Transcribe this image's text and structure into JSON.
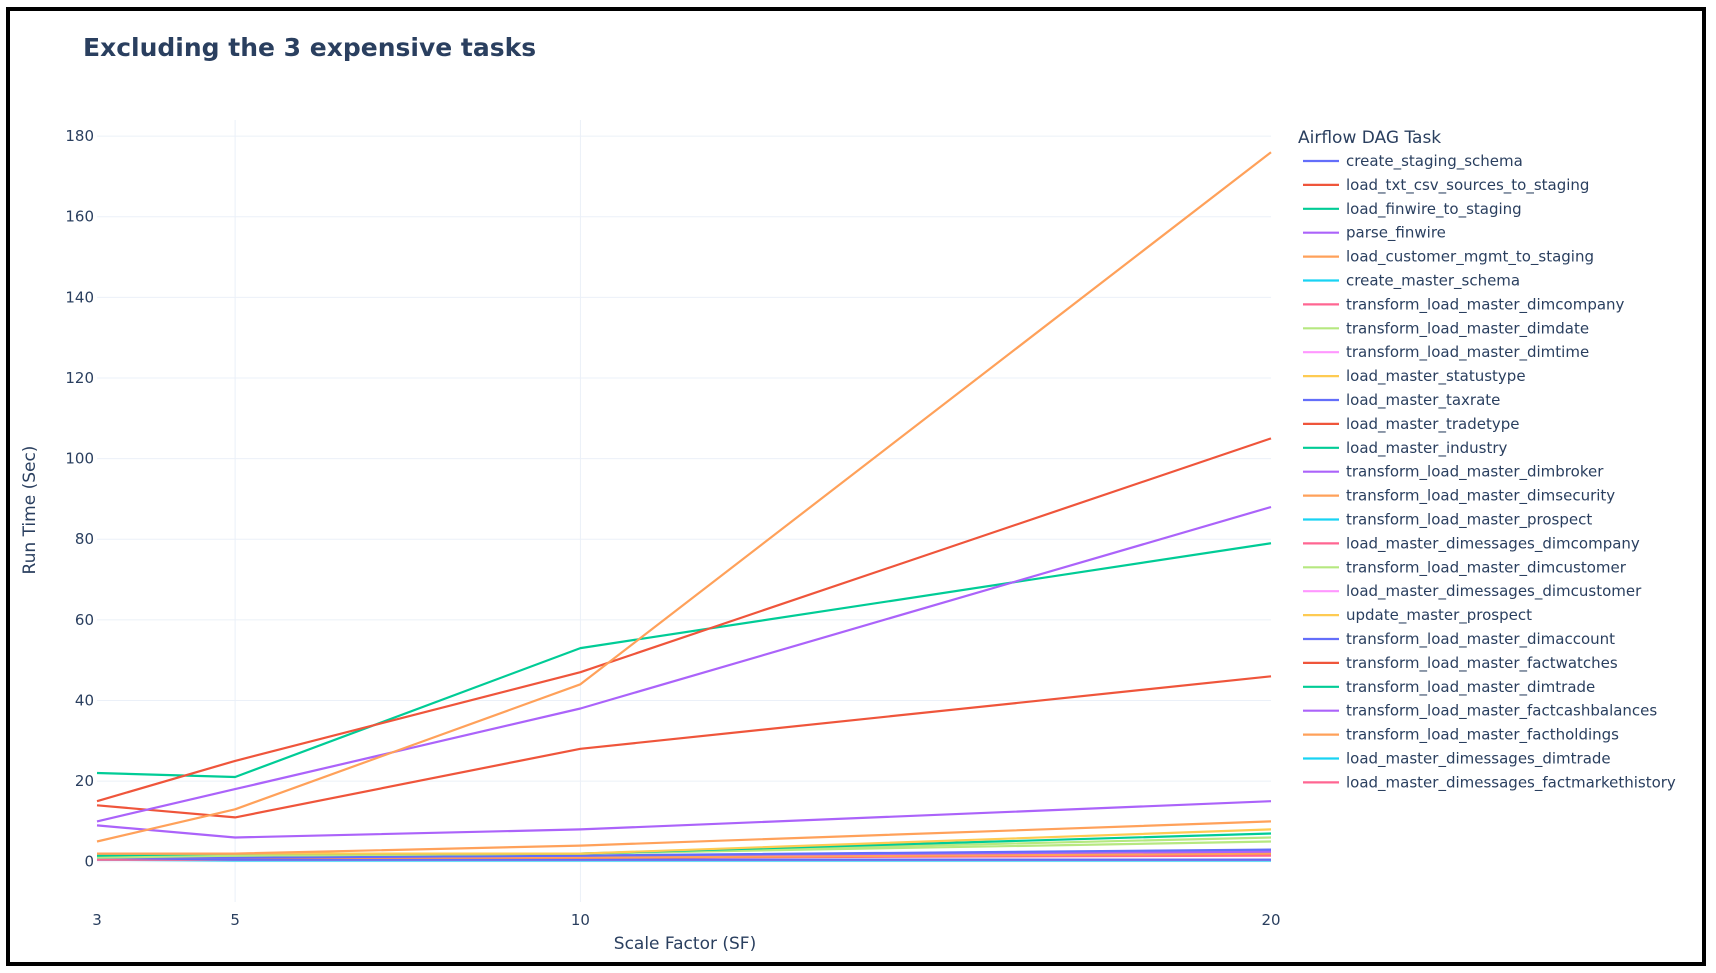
{
  "chart_data": {
    "type": "line",
    "title": "Excluding the 3 expensive tasks",
    "xlabel": "Scale Factor (SF)",
    "ylabel": "Run Time (Sec)",
    "x": [
      3,
      5,
      10,
      20
    ],
    "x_ticks": [
      "3",
      "5",
      "10",
      "20"
    ],
    "y_ticks": [
      "0",
      "20",
      "40",
      "60",
      "80",
      "100",
      "120",
      "140",
      "160",
      "180"
    ],
    "xlim": [
      3,
      20
    ],
    "ylim": [
      -10,
      184
    ],
    "grid": true,
    "legend_title": "Airflow DAG Task",
    "legend_position": "right",
    "series": [
      {
        "name": "create_staging_schema",
        "color": "#636efa",
        "values": [
          1,
          0.5,
          0.5,
          0.5
        ]
      },
      {
        "name": "load_txt_csv_sources_to_staging",
        "color": "#ef553b",
        "values": [
          15,
          25,
          47,
          105
        ]
      },
      {
        "name": "load_finwire_to_staging",
        "color": "#00cc96",
        "values": [
          22,
          21,
          53,
          79
        ]
      },
      {
        "name": "parse_finwire",
        "color": "#ab63fa",
        "values": [
          10,
          18,
          38,
          88
        ]
      },
      {
        "name": "load_customer_mgmt_to_staging",
        "color": "#ffa15a",
        "values": [
          5,
          13,
          44,
          176
        ]
      },
      {
        "name": "create_master_schema",
        "color": "#19d3f3",
        "values": [
          0.5,
          0.3,
          0.3,
          0.3
        ]
      },
      {
        "name": "transform_load_master_dimcompany",
        "color": "#ff6692",
        "values": [
          1,
          1,
          1,
          1.5
        ]
      },
      {
        "name": "transform_load_master_dimdate",
        "color": "#b6e880",
        "values": [
          1.5,
          1.5,
          2,
          5
        ]
      },
      {
        "name": "transform_load_master_dimtime",
        "color": "#ff97ff",
        "values": [
          0.5,
          0.5,
          0.5,
          0.5
        ]
      },
      {
        "name": "load_master_statustype",
        "color": "#fecb52",
        "values": [
          0.5,
          0.5,
          0.5,
          0.5
        ]
      },
      {
        "name": "load_master_taxrate",
        "color": "#636efa",
        "values": [
          0.5,
          0.5,
          0.5,
          0.5
        ]
      },
      {
        "name": "load_master_tradetype",
        "color": "#ef553b",
        "values": [
          14,
          11,
          28,
          46
        ]
      },
      {
        "name": "load_master_industry",
        "color": "#00cc96",
        "values": [
          0.5,
          0.5,
          0.5,
          0.5
        ]
      },
      {
        "name": "transform_load_master_dimbroker",
        "color": "#ab63fa",
        "values": [
          9,
          6,
          8,
          15
        ]
      },
      {
        "name": "transform_load_master_dimsecurity",
        "color": "#ffa15a",
        "values": [
          2,
          2,
          4,
          10
        ]
      },
      {
        "name": "transform_load_master_prospect",
        "color": "#19d3f3",
        "values": [
          0.5,
          0.5,
          0.5,
          0.5
        ]
      },
      {
        "name": "load_master_dimessages_dimcompany",
        "color": "#ff6692",
        "values": [
          0.5,
          0.5,
          0.5,
          0.5
        ]
      },
      {
        "name": "transform_load_master_dimcustomer",
        "color": "#b6e880",
        "values": [
          1,
          1.5,
          2,
          6
        ]
      },
      {
        "name": "load_master_dimessages_dimcustomer",
        "color": "#ff97ff",
        "values": [
          0.5,
          0.5,
          0.5,
          0.5
        ]
      },
      {
        "name": "update_master_prospect",
        "color": "#fecb52",
        "values": [
          2,
          2,
          2,
          8
        ]
      },
      {
        "name": "transform_load_master_dimaccount",
        "color": "#636efa",
        "values": [
          1,
          1,
          1.5,
          3
        ]
      },
      {
        "name": "transform_load_master_factwatches",
        "color": "#ef553b",
        "values": [
          1,
          1,
          1,
          2
        ]
      },
      {
        "name": "transform_load_master_dimtrade",
        "color": "#00cc96",
        "values": [
          1.5,
          2,
          2,
          7
        ]
      },
      {
        "name": "transform_load_master_factcashbalances",
        "color": "#ab63fa",
        "values": [
          1,
          1,
          1.5,
          2.5
        ]
      },
      {
        "name": "transform_load_master_factholdings",
        "color": "#ffa15a",
        "values": [
          1,
          1,
          1,
          2
        ]
      },
      {
        "name": "load_master_dimessages_dimtrade",
        "color": "#19d3f3",
        "values": [
          0.5,
          0.5,
          0.5,
          0.5
        ]
      },
      {
        "name": "load_master_dimessages_factmarkethistory",
        "color": "#ff6692",
        "values": [
          0.5,
          0.5,
          0.5,
          0.5
        ]
      }
    ]
  }
}
